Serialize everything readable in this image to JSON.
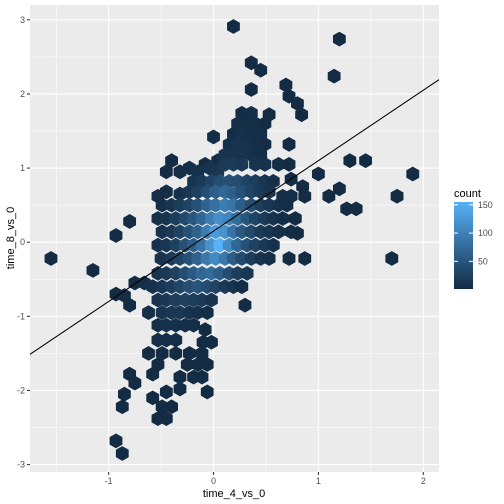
{
  "chart_data": {
    "type": "hexbin",
    "xlabel": "time_4_vs_0",
    "ylabel": "time_8_vs_0",
    "xlim": [
      -1.75,
      2.15
    ],
    "ylim": [
      -3.1,
      3.2
    ],
    "x_ticks": [
      -1,
      0,
      1,
      2
    ],
    "y_ticks": [
      -3,
      -2,
      -1,
      0,
      1,
      2,
      3
    ],
    "grid": true,
    "legend": {
      "title": "count",
      "ticks": [
        50,
        100,
        150
      ],
      "range": [
        1,
        155
      ],
      "placement": "right"
    },
    "colors": {
      "low": "#132B43",
      "high": "#56B1F7",
      "panel": "#EBEBEB",
      "grid": "#FFFFFF",
      "line": "#000000"
    },
    "regression_line": {
      "intercept": 0.15,
      "slope": 0.95
    },
    "hexbins": [
      [
        0.19,
        2.91,
        1
      ],
      [
        1.2,
        2.74,
        1
      ],
      [
        0.36,
        2.42,
        1
      ],
      [
        0.45,
        2.32,
        1
      ],
      [
        1.15,
        2.24,
        1
      ],
      [
        0.36,
        2.06,
        1
      ],
      [
        0.69,
        2.12,
        1
      ],
      [
        0.72,
        1.97,
        1
      ],
      [
        0.8,
        1.87,
        1
      ],
      [
        0.27,
        1.74,
        3
      ],
      [
        0.36,
        1.74,
        4
      ],
      [
        0.53,
        1.72,
        2
      ],
      [
        0.84,
        1.72,
        1
      ],
      [
        0.23,
        1.6,
        4
      ],
      [
        0.32,
        1.6,
        5
      ],
      [
        0.4,
        1.6,
        6
      ],
      [
        0.49,
        1.6,
        3
      ],
      [
        0.0,
        1.42,
        4
      ],
      [
        0.19,
        1.46,
        5
      ],
      [
        0.27,
        1.46,
        8
      ],
      [
        0.36,
        1.46,
        6
      ],
      [
        0.45,
        1.46,
        4
      ],
      [
        0.15,
        1.32,
        7
      ],
      [
        0.23,
        1.32,
        10
      ],
      [
        0.32,
        1.32,
        9
      ],
      [
        0.4,
        1.32,
        6
      ],
      [
        0.49,
        1.32,
        3
      ],
      [
        0.72,
        1.32,
        1
      ],
      [
        -0.4,
        1.1,
        2
      ],
      [
        -0.08,
        1.05,
        2
      ],
      [
        0.04,
        1.1,
        5
      ],
      [
        0.11,
        1.18,
        10
      ],
      [
        0.19,
        1.18,
        12
      ],
      [
        0.27,
        1.18,
        11
      ],
      [
        0.36,
        1.18,
        8
      ],
      [
        0.45,
        1.18,
        5
      ],
      [
        1.3,
        1.1,
        1
      ],
      [
        1.45,
        1.1,
        1
      ],
      [
        -0.45,
        0.95,
        3
      ],
      [
        -0.32,
        0.95,
        4
      ],
      [
        -0.23,
        1.0,
        5
      ],
      [
        -0.15,
        0.95,
        8
      ],
      [
        -0.04,
        1.0,
        10
      ],
      [
        0.04,
        0.95,
        14
      ],
      [
        0.11,
        1.05,
        18
      ],
      [
        0.19,
        1.05,
        20
      ],
      [
        0.27,
        1.05,
        16
      ],
      [
        0.4,
        1.05,
        12
      ],
      [
        0.49,
        1.05,
        8
      ],
      [
        0.62,
        1.05,
        4
      ],
      [
        0.72,
        1.05,
        2
      ],
      [
        1.0,
        0.92,
        1
      ],
      [
        1.9,
        0.92,
        1
      ],
      [
        -0.19,
        0.82,
        12
      ],
      [
        -0.11,
        0.82,
        18
      ],
      [
        -0.02,
        0.82,
        30
      ],
      [
        0.06,
        0.82,
        40
      ],
      [
        0.15,
        0.82,
        45
      ],
      [
        0.23,
        0.82,
        40
      ],
      [
        0.32,
        0.82,
        30
      ],
      [
        0.4,
        0.82,
        22
      ],
      [
        0.49,
        0.82,
        12
      ],
      [
        0.57,
        0.82,
        6
      ],
      [
        0.74,
        0.85,
        3
      ],
      [
        0.85,
        0.75,
        1
      ],
      [
        -0.53,
        0.62,
        5
      ],
      [
        -0.45,
        0.68,
        4
      ],
      [
        -0.32,
        0.65,
        8
      ],
      [
        -0.23,
        0.68,
        15
      ],
      [
        -0.15,
        0.68,
        25
      ],
      [
        -0.06,
        0.68,
        40
      ],
      [
        0.02,
        0.68,
        60
      ],
      [
        0.11,
        0.68,
        70
      ],
      [
        0.19,
        0.65,
        60
      ],
      [
        0.27,
        0.68,
        45
      ],
      [
        0.36,
        0.68,
        30
      ],
      [
        0.45,
        0.68,
        18
      ],
      [
        0.53,
        0.68,
        10
      ],
      [
        0.66,
        0.62,
        6
      ],
      [
        0.74,
        0.62,
        4
      ],
      [
        0.87,
        0.62,
        2
      ],
      [
        1.1,
        0.62,
        1
      ],
      [
        1.2,
        0.72,
        1
      ],
      [
        1.75,
        0.62,
        1
      ],
      [
        -0.49,
        0.5,
        6
      ],
      [
        -0.4,
        0.5,
        12
      ],
      [
        -0.32,
        0.5,
        20
      ],
      [
        -0.23,
        0.5,
        30
      ],
      [
        -0.15,
        0.5,
        45
      ],
      [
        -0.06,
        0.5,
        65
      ],
      [
        0.02,
        0.5,
        80
      ],
      [
        0.11,
        0.5,
        95
      ],
      [
        0.19,
        0.5,
        85
      ],
      [
        0.27,
        0.5,
        60
      ],
      [
        0.36,
        0.5,
        40
      ],
      [
        0.45,
        0.5,
        25
      ],
      [
        0.53,
        0.5,
        14
      ],
      [
        0.62,
        0.5,
        8
      ],
      [
        0.7,
        0.5,
        4
      ],
      [
        1.27,
        0.45,
        1
      ],
      [
        1.36,
        0.45,
        1
      ],
      [
        -0.8,
        0.28,
        2
      ],
      [
        -0.53,
        0.32,
        7
      ],
      [
        -0.45,
        0.32,
        12
      ],
      [
        -0.36,
        0.32,
        22
      ],
      [
        -0.27,
        0.32,
        35
      ],
      [
        -0.19,
        0.32,
        50
      ],
      [
        -0.11,
        0.32,
        70
      ],
      [
        -0.02,
        0.32,
        95
      ],
      [
        0.06,
        0.32,
        115
      ],
      [
        0.15,
        0.32,
        105
      ],
      [
        0.23,
        0.32,
        75
      ],
      [
        0.32,
        0.32,
        50
      ],
      [
        0.4,
        0.32,
        30
      ],
      [
        0.49,
        0.32,
        18
      ],
      [
        0.57,
        0.32,
        10
      ],
      [
        0.66,
        0.32,
        5
      ],
      [
        0.78,
        0.32,
        2
      ],
      [
        -0.93,
        0.09,
        1
      ],
      [
        -0.49,
        0.14,
        9
      ],
      [
        -0.4,
        0.14,
        16
      ],
      [
        -0.32,
        0.14,
        28
      ],
      [
        -0.23,
        0.14,
        45
      ],
      [
        -0.15,
        0.14,
        65
      ],
      [
        -0.06,
        0.14,
        95
      ],
      [
        0.02,
        0.14,
        130
      ],
      [
        0.11,
        0.14,
        120
      ],
      [
        0.19,
        0.14,
        85
      ],
      [
        0.27,
        0.14,
        55
      ],
      [
        0.36,
        0.14,
        35
      ],
      [
        0.45,
        0.14,
        20
      ],
      [
        0.53,
        0.14,
        12
      ],
      [
        0.62,
        0.14,
        6
      ],
      [
        0.74,
        0.14,
        3
      ],
      [
        0.8,
        0.12,
        1
      ],
      [
        -0.53,
        -0.04,
        8
      ],
      [
        -0.45,
        -0.04,
        15
      ],
      [
        -0.36,
        -0.04,
        26
      ],
      [
        -0.27,
        -0.04,
        42
      ],
      [
        -0.19,
        -0.04,
        60
      ],
      [
        -0.11,
        -0.04,
        85
      ],
      [
        -0.02,
        -0.04,
        120
      ],
      [
        0.06,
        -0.04,
        155
      ],
      [
        0.15,
        -0.04,
        110
      ],
      [
        0.23,
        -0.04,
        70
      ],
      [
        0.32,
        -0.04,
        45
      ],
      [
        0.4,
        -0.04,
        28
      ],
      [
        0.49,
        -0.04,
        16
      ],
      [
        0.57,
        -0.04,
        8
      ],
      [
        -1.55,
        -0.22,
        1
      ],
      [
        -0.5,
        -0.22,
        10
      ],
      [
        -0.4,
        -0.22,
        18
      ],
      [
        -0.32,
        -0.22,
        30
      ],
      [
        -0.23,
        -0.22,
        45
      ],
      [
        -0.15,
        -0.22,
        65
      ],
      [
        -0.06,
        -0.22,
        90
      ],
      [
        0.02,
        -0.22,
        110
      ],
      [
        0.11,
        -0.22,
        90
      ],
      [
        0.19,
        -0.22,
        60
      ],
      [
        0.27,
        -0.22,
        38
      ],
      [
        0.36,
        -0.22,
        22
      ],
      [
        0.45,
        -0.22,
        12
      ],
      [
        0.53,
        -0.22,
        6
      ],
      [
        0.72,
        -0.22,
        1
      ],
      [
        0.87,
        -0.22,
        1
      ],
      [
        1.7,
        -0.22,
        1
      ],
      [
        -1.15,
        -0.38,
        1
      ],
      [
        -0.75,
        -0.55,
        2
      ],
      [
        -0.53,
        -0.42,
        10
      ],
      [
        -0.45,
        -0.42,
        16
      ],
      [
        -0.36,
        -0.42,
        26
      ],
      [
        -0.27,
        -0.42,
        40
      ],
      [
        -0.19,
        -0.42,
        55
      ],
      [
        -0.11,
        -0.42,
        70
      ],
      [
        -0.02,
        -0.42,
        75
      ],
      [
        0.06,
        -0.42,
        60
      ],
      [
        0.15,
        -0.42,
        40
      ],
      [
        0.23,
        -0.42,
        24
      ],
      [
        0.32,
        -0.42,
        14
      ],
      [
        -0.66,
        -0.55,
        5
      ],
      [
        -0.58,
        -0.6,
        8
      ],
      [
        -0.49,
        -0.6,
        14
      ],
      [
        -0.4,
        -0.6,
        22
      ],
      [
        -0.32,
        -0.6,
        32
      ],
      [
        -0.23,
        -0.6,
        42
      ],
      [
        -0.15,
        -0.6,
        48
      ],
      [
        -0.06,
        -0.6,
        40
      ],
      [
        0.02,
        -0.6,
        30
      ],
      [
        0.11,
        -0.6,
        18
      ],
      [
        0.19,
        -0.6,
        10
      ],
      [
        0.27,
        -0.6,
        5
      ],
      [
        -0.93,
        -0.7,
        2
      ],
      [
        -0.85,
        -0.72,
        3
      ],
      [
        -0.8,
        -0.85,
        2
      ],
      [
        -0.53,
        -0.78,
        10
      ],
      [
        -0.45,
        -0.78,
        16
      ],
      [
        -0.36,
        -0.78,
        22
      ],
      [
        -0.27,
        -0.78,
        26
      ],
      [
        -0.19,
        -0.78,
        24
      ],
      [
        -0.11,
        -0.78,
        18
      ],
      [
        -0.02,
        -0.78,
        10
      ],
      [
        0.3,
        -0.85,
        2
      ],
      [
        -0.62,
        -0.95,
        5
      ],
      [
        -0.49,
        -0.95,
        10
      ],
      [
        -0.4,
        -0.95,
        14
      ],
      [
        -0.32,
        -0.95,
        16
      ],
      [
        -0.23,
        -0.95,
        12
      ],
      [
        -0.15,
        -0.95,
        8
      ],
      [
        -0.06,
        -0.95,
        5
      ],
      [
        -0.53,
        -1.12,
        6
      ],
      [
        -0.45,
        -1.12,
        8
      ],
      [
        -0.36,
        -1.12,
        8
      ],
      [
        -0.27,
        -1.12,
        6
      ],
      [
        -0.19,
        -1.12,
        4
      ],
      [
        -0.08,
        -1.18,
        2
      ],
      [
        -0.53,
        -1.32,
        4
      ],
      [
        -0.45,
        -1.32,
        5
      ],
      [
        -0.36,
        -1.32,
        4
      ],
      [
        -0.1,
        -1.35,
        2
      ],
      [
        -0.02,
        -1.35,
        2
      ],
      [
        -0.62,
        -1.5,
        3
      ],
      [
        -0.49,
        -1.5,
        3
      ],
      [
        -0.36,
        -1.5,
        2
      ],
      [
        -0.23,
        -1.5,
        2
      ],
      [
        -0.11,
        -1.5,
        3
      ],
      [
        -0.53,
        -1.65,
        2
      ],
      [
        -0.25,
        -1.65,
        3
      ],
      [
        -0.15,
        -1.65,
        3
      ],
      [
        -0.06,
        -1.65,
        2
      ],
      [
        -0.8,
        -1.78,
        1
      ],
      [
        -0.58,
        -1.78,
        2
      ],
      [
        -0.32,
        -1.82,
        2
      ],
      [
        -0.19,
        -1.82,
        3
      ],
      [
        -0.11,
        -1.82,
        2
      ],
      [
        -0.75,
        -1.9,
        1
      ],
      [
        -0.85,
        -2.05,
        1
      ],
      [
        -0.45,
        -2.02,
        2
      ],
      [
        -0.32,
        -1.98,
        2
      ],
      [
        -0.06,
        -2.02,
        1
      ],
      [
        -0.58,
        -2.1,
        1
      ],
      [
        -0.87,
        -2.22,
        1
      ],
      [
        -0.49,
        -2.22,
        2
      ],
      [
        -0.4,
        -2.22,
        2
      ],
      [
        -0.53,
        -2.38,
        2
      ],
      [
        -0.45,
        -2.38,
        1
      ],
      [
        -0.93,
        -2.68,
        1
      ],
      [
        -0.87,
        -2.85,
        1
      ]
    ]
  }
}
